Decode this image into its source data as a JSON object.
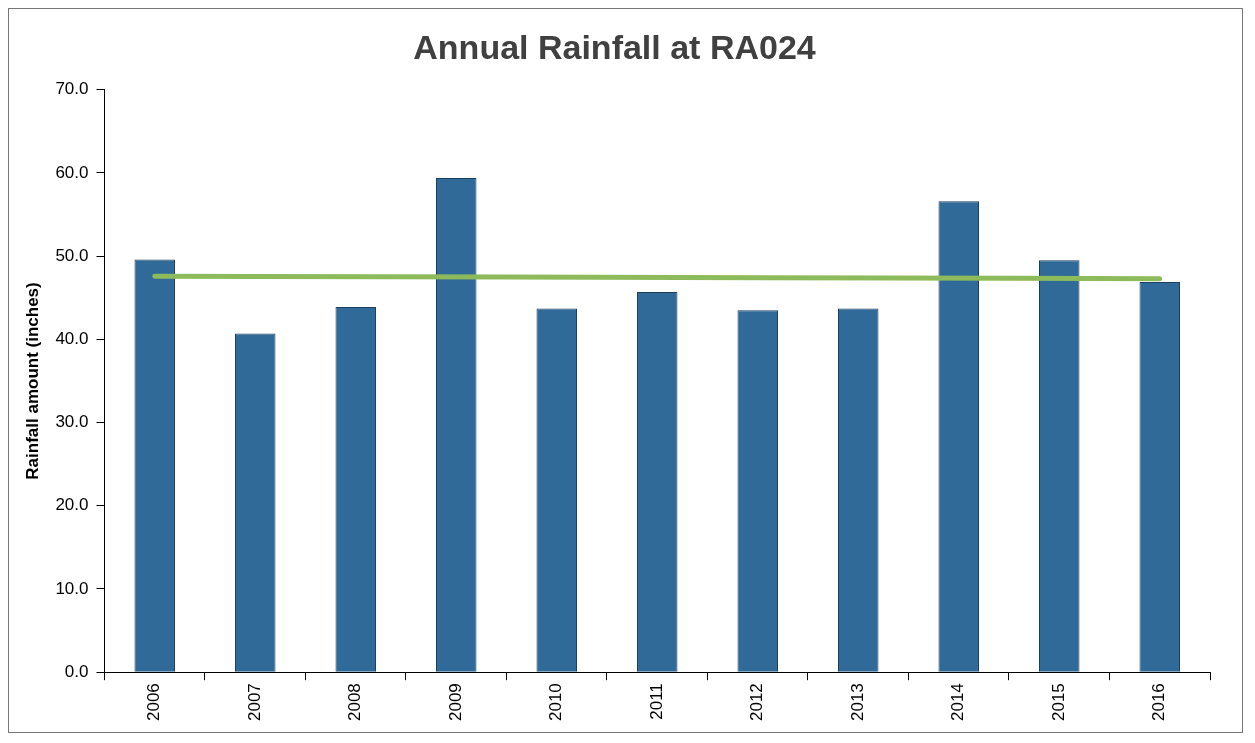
{
  "chart_data": {
    "type": "bar",
    "title": "Annual Rainfall at RA024",
    "ylabel": "Rainfall amount (inches)",
    "categories": [
      "2006",
      "2007",
      "2008",
      "2009",
      "2010",
      "2011",
      "2012",
      "2013",
      "2014",
      "2015",
      "2016"
    ],
    "series": [
      {
        "color": "#2f6a98",
        "values": [
          49.6,
          40.7,
          43.9,
          59.4,
          43.7,
          45.7,
          43.5,
          43.7,
          56.6,
          49.5,
          46.9
        ]
      },
      {
        "type": "line",
        "color": "#8dbb5c",
        "values": [
          47.6,
          null,
          null,
          null,
          null,
          null,
          null,
          null,
          null,
          null,
          47.3
        ]
      }
    ],
    "ylim": [
      0,
      70
    ],
    "yticks": [
      {
        "value": 0,
        "label": "0.0"
      },
      {
        "value": 10,
        "label": "10.0"
      },
      {
        "value": 20,
        "label": "20.0"
      },
      {
        "value": 30,
        "label": "30.0"
      },
      {
        "value": 40,
        "label": "40.0"
      },
      {
        "value": 50,
        "label": "50.0"
      },
      {
        "value": 60,
        "label": "60.0"
      },
      {
        "value": 70,
        "label": "70.0"
      }
    ],
    "grid": false,
    "legend": false
  }
}
